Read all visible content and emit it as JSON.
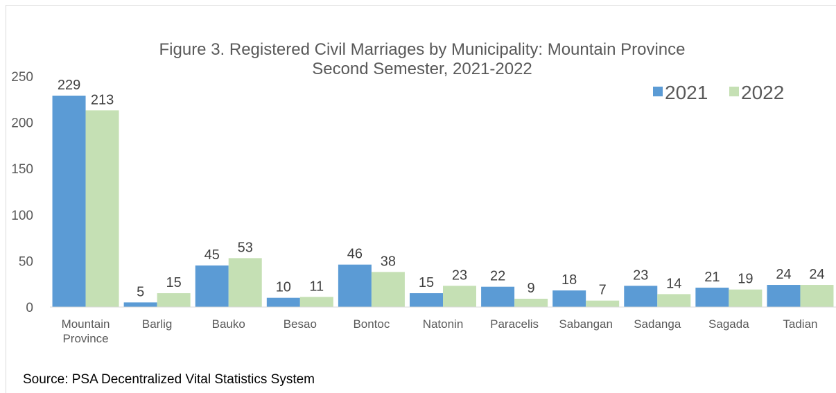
{
  "chart_data": {
    "type": "bar",
    "title_line1": "Figure 3.  Registered Civil Marriages by Municipality: Mountain Province",
    "title_line2": "Second Semester, 2021-2022",
    "categories": [
      [
        "Mountain",
        "Province"
      ],
      [
        "Barlig"
      ],
      [
        "Bauko"
      ],
      [
        "Besao"
      ],
      [
        "Bontoc"
      ],
      [
        "Natonin"
      ],
      [
        "Paracelis"
      ],
      [
        "Sabangan"
      ],
      [
        "Sadanga"
      ],
      [
        "Sagada"
      ],
      [
        "Tadian"
      ]
    ],
    "series": [
      {
        "name": "2021",
        "color": "#5b9bd5",
        "values": [
          229,
          5,
          45,
          10,
          46,
          15,
          22,
          18,
          23,
          21,
          24
        ]
      },
      {
        "name": "2022",
        "color": "#c5e0b4",
        "values": [
          213,
          15,
          53,
          11,
          38,
          23,
          9,
          7,
          14,
          19,
          24
        ]
      }
    ],
    "yticks": [
      0,
      50,
      100,
      150,
      200,
      250
    ],
    "ylim": [
      0,
      250
    ],
    "grid": false,
    "legend": "top-right",
    "data_labels": true
  },
  "source": "Source: PSA Decentralized Vital Statistics System"
}
